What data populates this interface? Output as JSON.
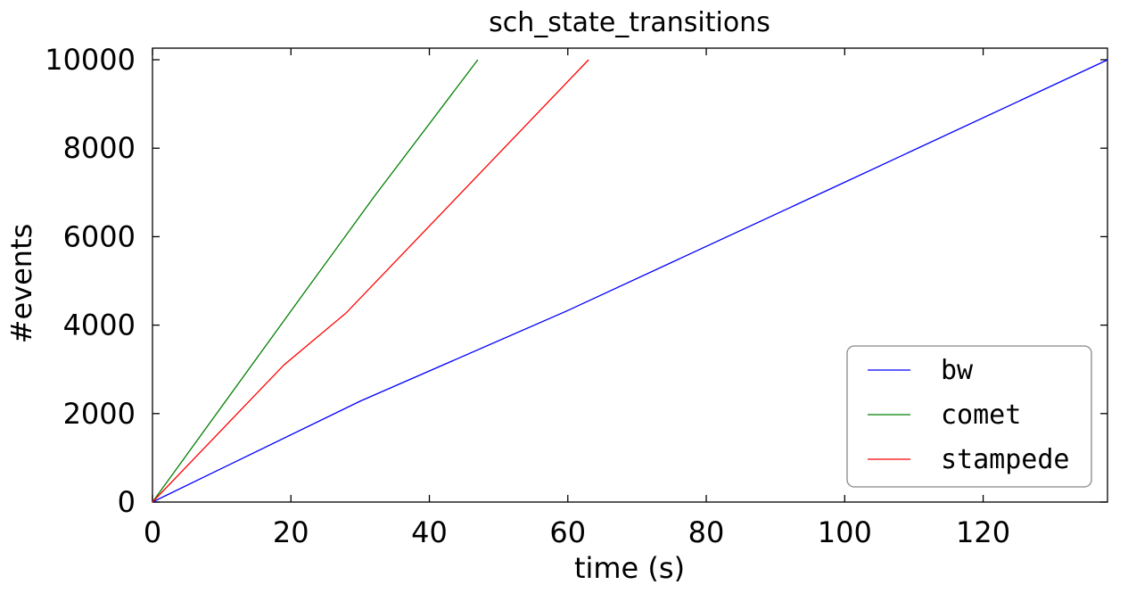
{
  "chart_data": {
    "type": "line",
    "title": "sch_state_transitions",
    "xlabel": "time (s)",
    "ylabel": "#events",
    "xlim": [
      0,
      138
    ],
    "ylim": [
      0,
      10000
    ],
    "xticks": [
      0,
      20,
      40,
      60,
      80,
      100,
      120
    ],
    "yticks": [
      0,
      2000,
      4000,
      6000,
      8000,
      10000
    ],
    "grid": false,
    "legend_position": "bottom-right",
    "series": [
      {
        "name": "bw",
        "color": "#0000ff",
        "points": [
          [
            0,
            0
          ],
          [
            30,
            2280
          ],
          [
            60,
            4330
          ],
          [
            100,
            7230
          ],
          [
            138,
            10000
          ]
        ]
      },
      {
        "name": "comet",
        "color": "#008000",
        "points": [
          [
            0,
            0
          ],
          [
            22,
            4750
          ],
          [
            32,
            6900
          ],
          [
            47,
            10000
          ]
        ]
      },
      {
        "name": "stampede",
        "color": "#ff0000",
        "points": [
          [
            0,
            0
          ],
          [
            19,
            3100
          ],
          [
            28,
            4280
          ],
          [
            63,
            10000
          ]
        ]
      }
    ]
  }
}
